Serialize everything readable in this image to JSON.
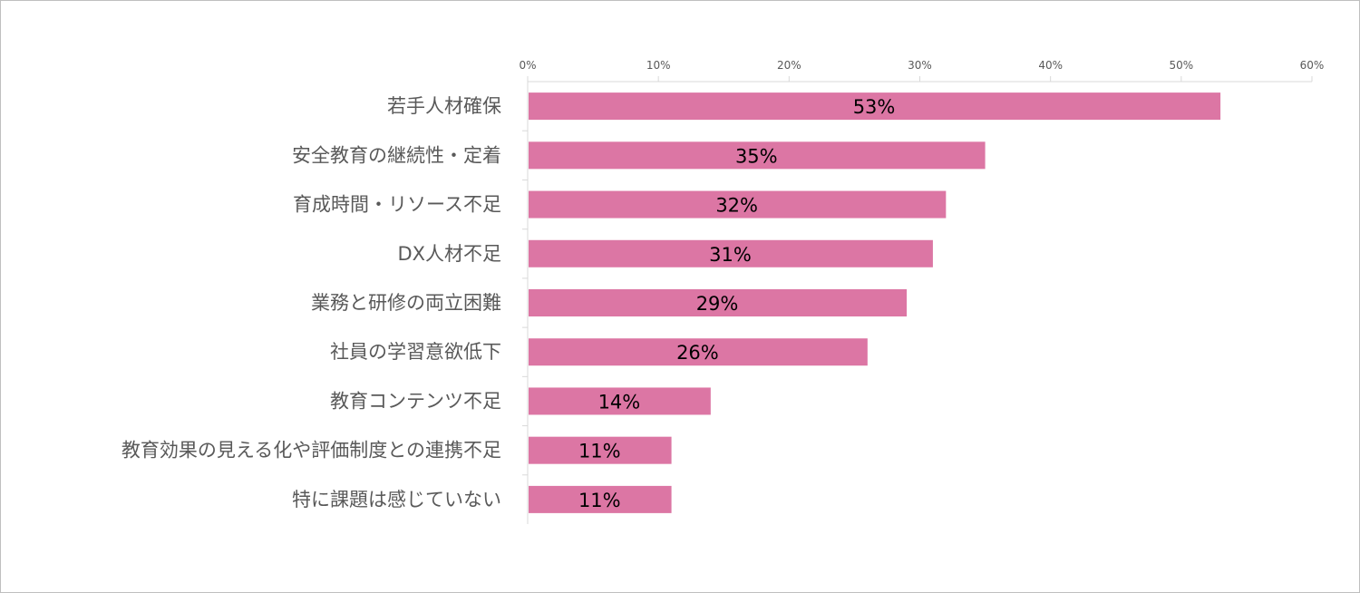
{
  "chart_data": {
    "type": "bar",
    "orientation": "horizontal",
    "title": "",
    "xlabel": "",
    "ylabel": "",
    "xlim": [
      0,
      60
    ],
    "x_ticks": [
      0,
      10,
      20,
      30,
      40,
      50,
      60
    ],
    "x_tick_labels": [
      "0%",
      "10%",
      "20%",
      "30%",
      "40%",
      "50%",
      "60%"
    ],
    "x_axis_position": "top",
    "grid": false,
    "legend": "none",
    "categories": [
      "若手人材確保",
      "安全教育の継続性・定着",
      "育成時間・リソース不足",
      "DX人材不足",
      "業務と研修の両立困難",
      "社員の学習意欲低下",
      "教育コンテンツ不足",
      "教育効果の見える化や評価制度との連携不足",
      "特に課題は感じていない"
    ],
    "values": [
      53,
      35,
      32,
      31,
      29,
      26,
      14,
      11,
      11
    ],
    "data_labels": [
      "53%",
      "35%",
      "32%",
      "31%",
      "29%",
      "26%",
      "14%",
      "11%",
      "11%"
    ],
    "bar_color": "#dc76a4",
    "axis_color": "#d9d9d9"
  }
}
